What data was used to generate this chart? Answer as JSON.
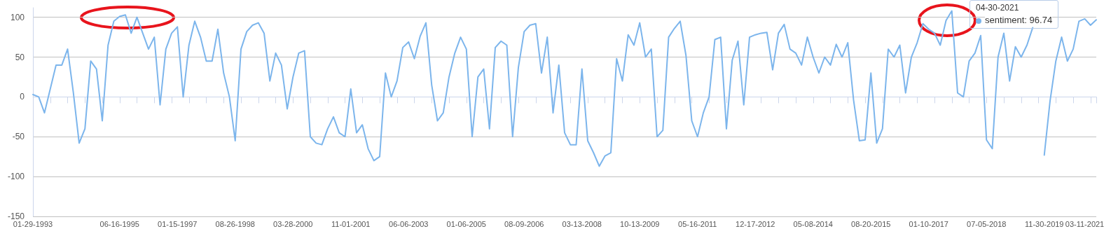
{
  "chart_data": {
    "type": "line",
    "categories": [
      "01-29-1993",
      null,
      null,
      null,
      null,
      null,
      null,
      null,
      null,
      null,
      null,
      null,
      null,
      null,
      null,
      "06-16-1995",
      null,
      null,
      null,
      null,
      null,
      null,
      null,
      null,
      null,
      "01-15-1997",
      null,
      null,
      null,
      null,
      null,
      null,
      null,
      null,
      null,
      "08-26-1998",
      null,
      null,
      null,
      null,
      null,
      null,
      null,
      null,
      null,
      "03-28-2000",
      null,
      null,
      null,
      null,
      null,
      null,
      null,
      null,
      null,
      "11-01-2001",
      null,
      null,
      null,
      null,
      null,
      null,
      null,
      null,
      null,
      "06-06-2003",
      null,
      null,
      null,
      null,
      null,
      null,
      null,
      null,
      null,
      "01-06-2005",
      null,
      null,
      null,
      null,
      null,
      null,
      null,
      null,
      null,
      "08-09-2006",
      null,
      null,
      null,
      null,
      null,
      null,
      null,
      null,
      null,
      "03-13-2008",
      null,
      null,
      null,
      null,
      null,
      null,
      null,
      null,
      null,
      "10-13-2009",
      null,
      null,
      null,
      null,
      null,
      null,
      null,
      null,
      null,
      "05-16-2011",
      null,
      null,
      null,
      null,
      null,
      null,
      null,
      null,
      null,
      "12-17-2012",
      null,
      null,
      null,
      null,
      null,
      null,
      null,
      null,
      null,
      "05-08-2014",
      null,
      null,
      null,
      null,
      null,
      null,
      null,
      null,
      null,
      "08-20-2015",
      null,
      null,
      null,
      null,
      null,
      null,
      null,
      null,
      null,
      "01-10-2017",
      null,
      null,
      null,
      null,
      null,
      null,
      null,
      null,
      null,
      "07-05-2018",
      null,
      null,
      null,
      null,
      null,
      null,
      null,
      null,
      null,
      "11-30-2019",
      null,
      null,
      null,
      null,
      null,
      null,
      "03-11-2021",
      null,
      null
    ],
    "series": [
      {
        "name": "sentiment",
        "color": "#7cb5ec",
        "values": [
          3,
          0,
          -20,
          10,
          40,
          40,
          60,
          5,
          -58,
          -40,
          45,
          35,
          -30,
          65,
          95,
          101,
          103,
          80,
          100,
          80,
          60,
          75,
          -10,
          60,
          80,
          88,
          0,
          65,
          95,
          75,
          45,
          45,
          85,
          30,
          0,
          -55,
          60,
          82,
          90,
          93,
          80,
          20,
          55,
          40,
          -15,
          25,
          55,
          58,
          -50,
          -58,
          -60,
          -40,
          -25,
          -45,
          -50,
          10,
          -45,
          -35,
          -65,
          -80,
          -75,
          30,
          0,
          20,
          62,
          69,
          48,
          76,
          93,
          15,
          -30,
          -20,
          25,
          55,
          75,
          60,
          -50,
          25,
          35,
          -40,
          62,
          70,
          65,
          -50,
          37,
          82,
          90,
          92,
          30,
          75,
          -20,
          40,
          -45,
          -60,
          -60,
          35,
          -55,
          -70,
          -87,
          -74,
          -70,
          48,
          20,
          78,
          65,
          93,
          50,
          60,
          -50,
          -42,
          75,
          86,
          95,
          52,
          -30,
          -50,
          -20,
          0,
          72,
          75,
          -40,
          46,
          70,
          -10,
          75,
          78,
          80,
          81,
          34,
          80,
          91,
          60,
          55,
          40,
          75,
          50,
          30,
          50,
          40,
          66,
          50,
          68,
          -4,
          -55,
          -54,
          30,
          -58,
          -40,
          60,
          50,
          65,
          5,
          50,
          68,
          92,
          85,
          80,
          65,
          96,
          108,
          5,
          0,
          45,
          55,
          77,
          -54,
          -65,
          50,
          80,
          20,
          63,
          50,
          65,
          87,
          null,
          -73,
          -5,
          45,
          75,
          45,
          60,
          95,
          98,
          90,
          96.74
        ]
      }
    ],
    "ylim": [
      -150,
      112
    ],
    "yticks": [
      -150,
      -100,
      -50,
      0,
      50,
      100
    ],
    "grid": "y",
    "marker": "none",
    "line_style": "solid",
    "annotations": [
      "04-30-2021",
      ": 96.74"
    ]
  }
}
